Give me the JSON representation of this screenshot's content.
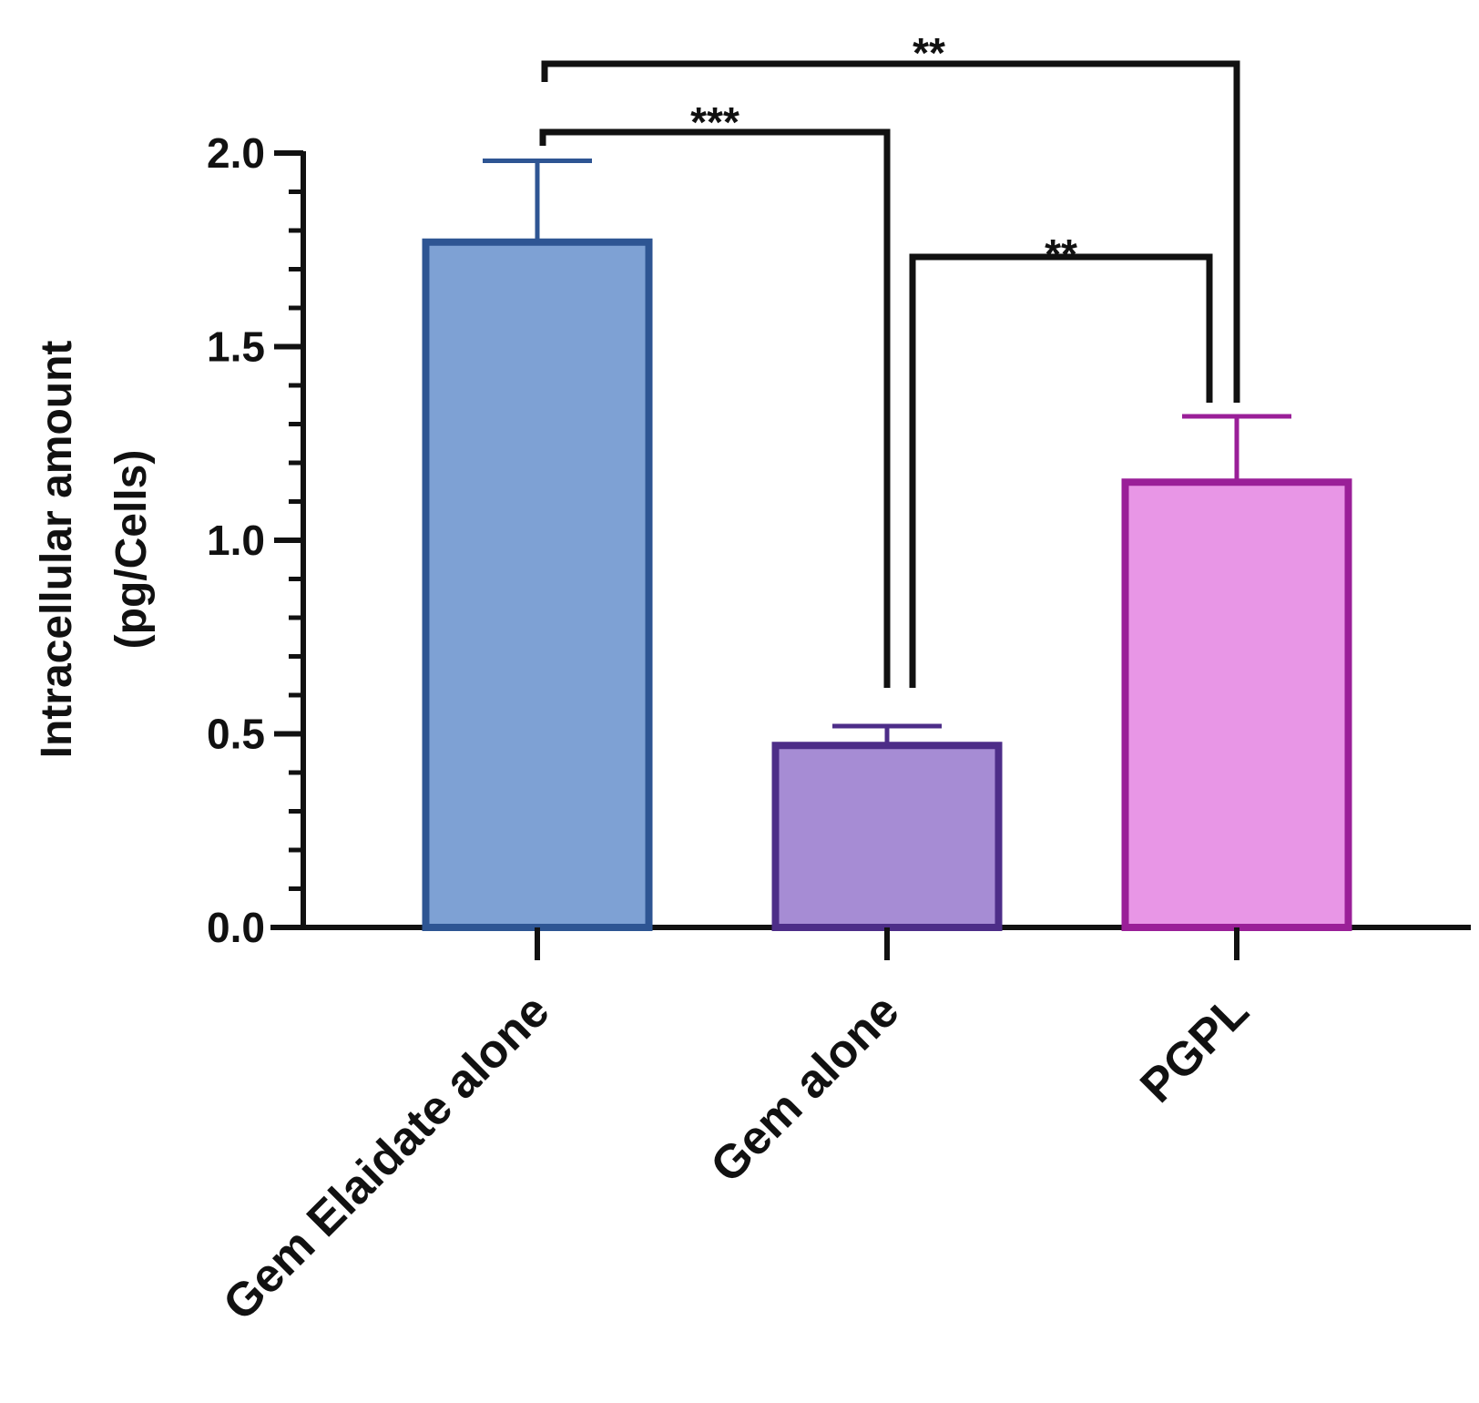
{
  "chart_data": {
    "type": "bar",
    "title": "",
    "xlabel": "",
    "ylabel_lines": [
      "Intracellular amount",
      "(pg/Cells)"
    ],
    "ylim": [
      0,
      2.0
    ],
    "major_ticks": [
      0.0,
      0.5,
      1.0,
      1.5,
      2.0
    ],
    "tick_labels": [
      "0.0",
      "0.5",
      "1.0",
      "1.5",
      "2.0"
    ],
    "minor_ticks_per_major": 5,
    "categories": [
      "Gem Elaidate alone",
      "Gem alone",
      "PGPL"
    ],
    "values": [
      1.77,
      0.47,
      1.15
    ],
    "errors": [
      0.21,
      0.05,
      0.17
    ],
    "fill_colors": [
      "#7ea1d4",
      "#a68cd4",
      "#e896e6"
    ],
    "edge_colors": [
      "#2e5593",
      "#4d2d88",
      "#9a1f98"
    ],
    "significance": [
      {
        "from": 0,
        "to": 2,
        "label": "**"
      },
      {
        "from": 0,
        "to": 1,
        "label": "***"
      },
      {
        "from": 1,
        "to": 2,
        "label": "**"
      }
    ]
  }
}
